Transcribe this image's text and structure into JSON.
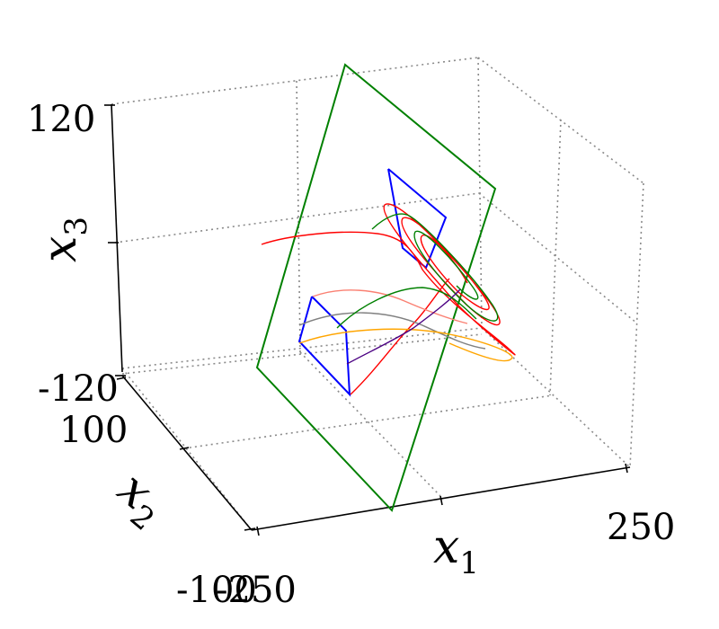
{
  "chart_data": {
    "type": "line3d",
    "axes": {
      "x1": {
        "label_base": "x",
        "label_sub": "1",
        "ticks": [
          "-250",
          "250"
        ]
      },
      "x2": {
        "label_base": "x",
        "label_sub": "2",
        "ticks": [
          "100",
          "-100"
        ]
      },
      "x3": {
        "label_base": "x",
        "label_sub": "3",
        "ticks": [
          "120",
          "-120"
        ]
      }
    },
    "xlim": [
      -250,
      250
    ],
    "ylim": [
      -100,
      100
    ],
    "zlim": [
      -120,
      120
    ],
    "grid": true,
    "colors": {
      "plane": "#008000",
      "box": "#0000ff",
      "trajectories": [
        "#ff0000",
        "#ff0000",
        "#008000",
        "#808080",
        "#fa8072",
        "#ffa500",
        "#4b0082",
        "#008000"
      ]
    },
    "series_count": 8
  }
}
